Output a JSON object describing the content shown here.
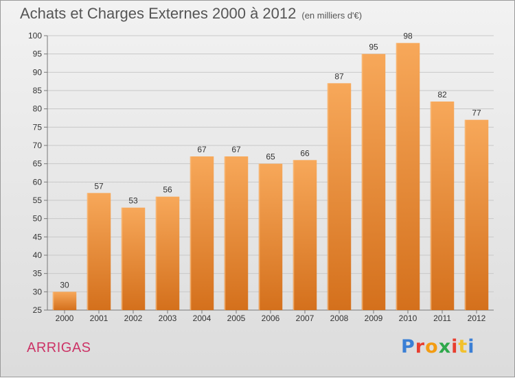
{
  "header": {
    "title": "Achats et Charges Externes 2000 à 2012",
    "unit": "(en milliers d'€)"
  },
  "footer": {
    "commune": "ARRIGAS",
    "logo_text": "Proxiti",
    "logo_colors": [
      "#3a7fd5",
      "#e83e2f",
      "#f39c12",
      "#2ea84b",
      "#e83e2f",
      "#f2c12e",
      "#3a7fd5"
    ]
  },
  "chart_data": {
    "type": "bar",
    "categories": [
      "2000",
      "2001",
      "2002",
      "2003",
      "2004",
      "2005",
      "2006",
      "2007",
      "2008",
      "2009",
      "2010",
      "2011",
      "2012"
    ],
    "values": [
      30,
      57,
      53,
      56,
      67,
      67,
      65,
      66,
      87,
      95,
      98,
      82,
      77
    ],
    "ylim": [
      25,
      100
    ],
    "yticks": [
      25,
      30,
      35,
      40,
      45,
      50,
      55,
      60,
      65,
      70,
      75,
      80,
      85,
      90,
      95,
      100
    ],
    "grid": true,
    "bar_color_light": "#f7a85a",
    "bar_color_dark": "#d4701c"
  }
}
